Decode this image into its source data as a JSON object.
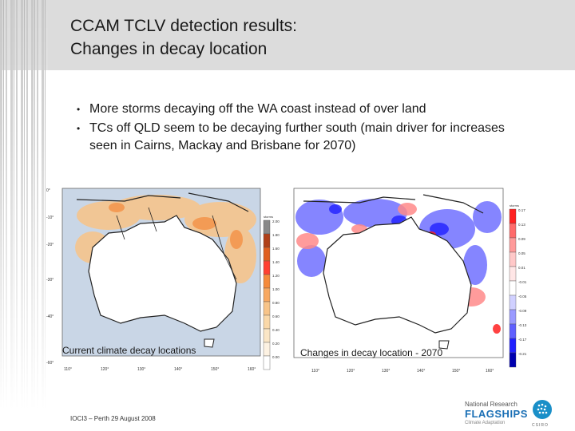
{
  "slide": {
    "title_line1": "CCAM TCLV detection results:",
    "title_line2": "Changes in decay location",
    "bullets": [
      "More storms decaying off the WA coast instead of over land",
      "TCs off QLD seem to be decaying further south (main driver for increases seen in Cairns, Mackay and Brisbane for 2070)"
    ],
    "footer": "IOCI3 – Perth 29 August 2008"
  },
  "map_left": {
    "caption": "Current climate decay locations",
    "lat_labels": [
      "0°",
      "-10°",
      "-20°",
      "-30°",
      "-40°",
      "-50°",
      "-60°"
    ],
    "lon_labels": [
      "110°",
      "120°",
      "130°",
      "140°",
      "150°",
      "160°"
    ],
    "legend_unit": "storms",
    "legend_values": [
      "2.00",
      "1.80",
      "1.60",
      "1.40",
      "1.20",
      "1.00",
      "0.80",
      "0.60",
      "0.40",
      "0.20",
      "0.00"
    ],
    "legend_colors": [
      "#888888",
      "#b04018",
      "#e06020",
      "#ff4030",
      "#f58a3a",
      "#f8a860",
      "#f8c488",
      "#fad8a8",
      "#fbe6c6",
      "#fdf2e2",
      "#ffffff"
    ]
  },
  "map_right": {
    "caption": "Changes in decay location - 2070",
    "lon_labels": [
      "110°",
      "120°",
      "130°",
      "140°",
      "150°",
      "160°"
    ],
    "legend_unit": "storms",
    "legend_values": [
      "0.17",
      "0.13",
      "0.09",
      "0.05",
      "0.01",
      "-0.01",
      "-0.05",
      "-0.09",
      "-0.13",
      "-0.17",
      "-0.21"
    ],
    "legend_colors": [
      "#ff2020",
      "#ff6a6a",
      "#ff9a9a",
      "#ffc8c8",
      "#ffe6e6",
      "#ffffff",
      "#d0d0ff",
      "#9a9aff",
      "#6060ff",
      "#2020ff",
      "#0000b0"
    ]
  },
  "logo": {
    "line1": "National Research",
    "line2": "FLAGSHIPS",
    "line3": "Climate Adaptation",
    "csiro": "CSIRO"
  },
  "colors": {
    "header_bg": "#dcdcdc",
    "title_text": "#1a1a1a",
    "flagships_blue": "#1a6fb5"
  }
}
